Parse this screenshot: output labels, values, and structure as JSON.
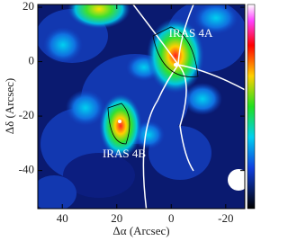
{
  "chart_data": {
    "type": "map",
    "xlabel": "Δα (Arcsec)",
    "ylabel": "Δδ (Arcsec)",
    "xlim": [
      49,
      -27
    ],
    "ylim": [
      -54,
      21
    ],
    "xticks": [
      40,
      20,
      0,
      -20
    ],
    "yticks": [
      20,
      0,
      -20,
      -40
    ],
    "annotations": [
      "IRAS 4A",
      "IRAS 4B"
    ]
  }
}
